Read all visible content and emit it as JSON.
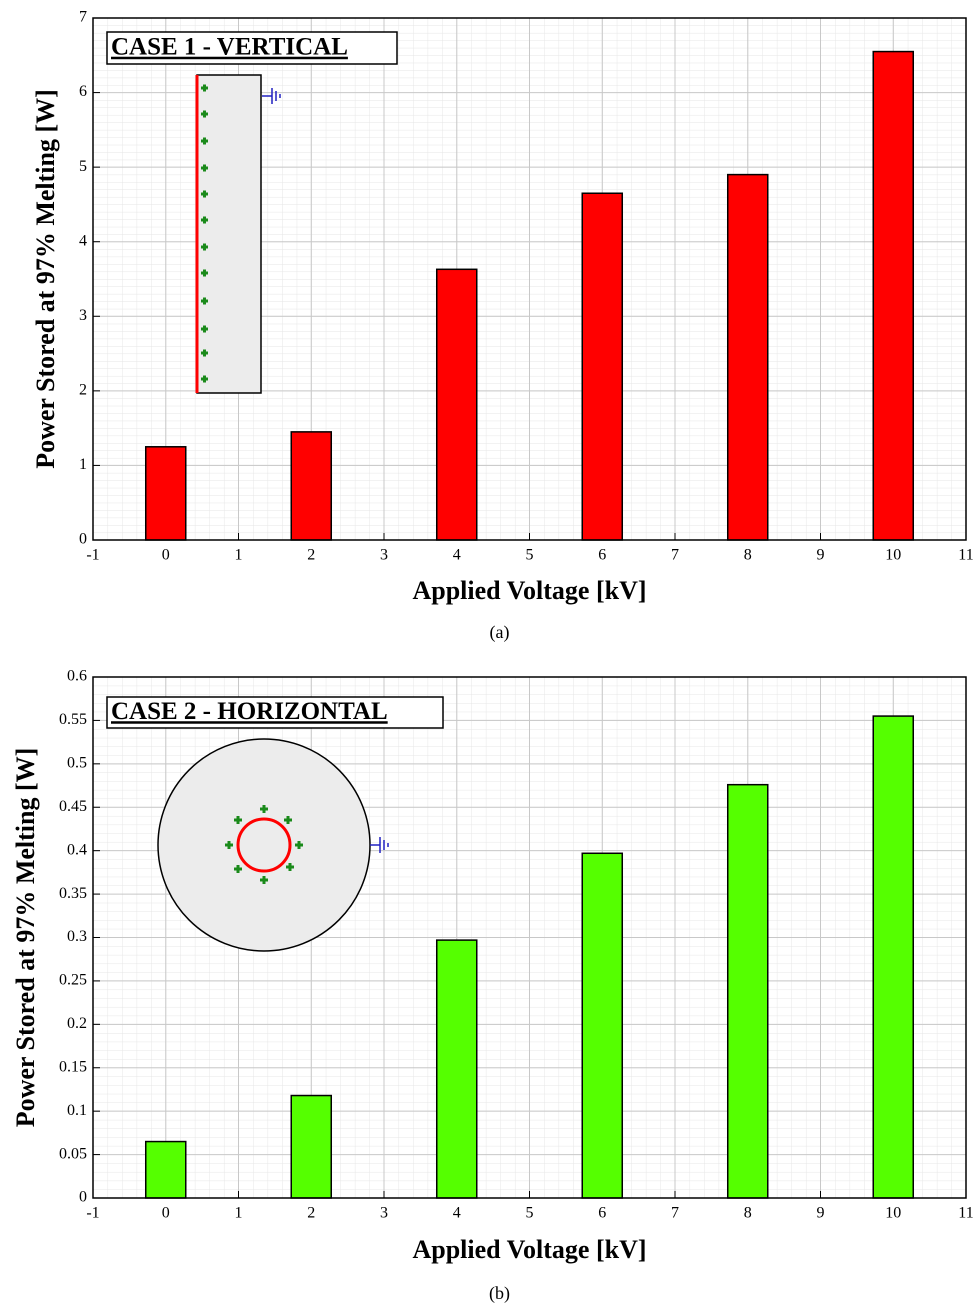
{
  "chart_data": [
    {
      "type": "bar",
      "annotation": "CASE 1 - VERTICAL",
      "caption": "(a)",
      "x_label": "Applied Voltage [kV]",
      "y_label": "Power Stored at 97% Melting [W]",
      "x": [
        0,
        2,
        4,
        6,
        8,
        10
      ],
      "values": [
        1.25,
        1.45,
        3.63,
        4.65,
        4.9,
        6.55
      ],
      "color": "#ff0000",
      "xlim": [
        -1,
        11
      ],
      "xticks": [
        -1,
        0,
        1,
        2,
        3,
        4,
        5,
        6,
        7,
        8,
        9,
        10,
        11
      ],
      "ylim": [
        0,
        7
      ],
      "yticks": [
        0,
        1,
        2,
        3,
        4,
        5,
        6,
        7
      ],
      "grid": true
    },
    {
      "type": "bar",
      "annotation": "CASE 2 - HORIZONTAL",
      "caption": "(b)",
      "x_label": "Applied Voltage [kV]",
      "y_label": "Power Stored at 97% Melting [W]",
      "x": [
        0,
        2,
        4,
        6,
        8,
        10
      ],
      "values": [
        0.065,
        0.118,
        0.297,
        0.397,
        0.476,
        0.555
      ],
      "color": "#55ff00",
      "xlim": [
        -1,
        11
      ],
      "xticks": [
        -1,
        0,
        1,
        2,
        3,
        4,
        5,
        6,
        7,
        8,
        9,
        10,
        11
      ],
      "ylim": [
        0,
        0.6
      ],
      "yticks": [
        0,
        0.05,
        0.1,
        0.15,
        0.2,
        0.25,
        0.3,
        0.35,
        0.4,
        0.45,
        0.5,
        0.55,
        0.6
      ],
      "grid": true
    }
  ]
}
